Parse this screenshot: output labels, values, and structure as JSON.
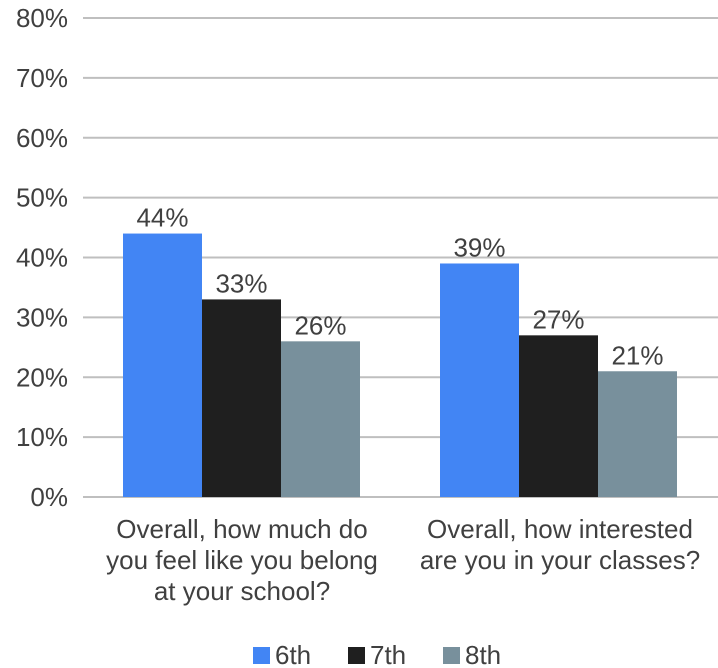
{
  "chart_data": {
    "type": "bar",
    "categories": [
      [
        "Overall, how much do",
        "you feel like you belong",
        "at your school?"
      ],
      [
        "Overall, how interested",
        "are you in your classes?"
      ]
    ],
    "series": [
      {
        "name": "6th",
        "values": [
          44,
          39
        ],
        "color": "#4285f4"
      },
      {
        "name": "7th",
        "values": [
          33,
          27
        ],
        "color": "#1f1f1f"
      },
      {
        "name": "8th",
        "values": [
          26,
          21
        ],
        "color": "#78909c"
      }
    ],
    "value_labels": [
      [
        "44%",
        "39%"
      ],
      [
        "33%",
        "27%"
      ],
      [
        "26%",
        "21%"
      ]
    ],
    "yticks": [
      "0%",
      "10%",
      "20%",
      "30%",
      "40%",
      "50%",
      "60%",
      "70%",
      "80%"
    ],
    "ylim": [
      0,
      80
    ],
    "unit": "%",
    "grid": true,
    "legend": "bottom-center"
  }
}
